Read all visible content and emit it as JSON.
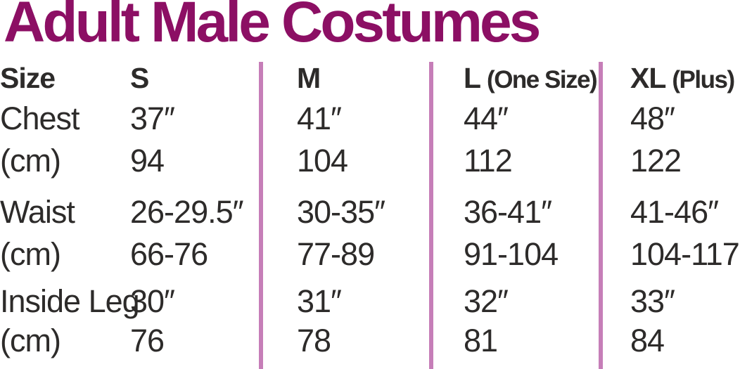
{
  "title": "Adult Male Costumes",
  "colors": {
    "title": "#8c0f64",
    "divider": "#c67eb8",
    "text": "#2d2b2a"
  },
  "table": {
    "header": {
      "row_label": "Size",
      "columns": [
        {
          "label": "S",
          "qualifier": ""
        },
        {
          "label": "M",
          "qualifier": ""
        },
        {
          "label": "L",
          "qualifier": "(One Size)"
        },
        {
          "label": "XL",
          "qualifier": "(Plus)"
        }
      ]
    },
    "rows": [
      {
        "label": "Chest",
        "values": [
          "37″",
          "41″",
          "44″",
          "48″"
        ]
      },
      {
        "label": "(cm)",
        "values": [
          "94",
          "104",
          "112",
          "122"
        ]
      },
      {
        "label": "Waist",
        "values": [
          "26-29.5″",
          "30-35″",
          "36-41″",
          "41-46″"
        ]
      },
      {
        "label": "(cm)",
        "values": [
          "66-76",
          "77-89",
          "91-104",
          "104-117"
        ]
      },
      {
        "label": "Inside Leg",
        "values": [
          "30″",
          "31″",
          "32″",
          "33″"
        ]
      },
      {
        "label": "(cm)",
        "values": [
          "76",
          "78",
          "81",
          "84"
        ]
      }
    ]
  },
  "chart_data": {
    "type": "table",
    "title": "Adult Male Costumes",
    "columns": [
      "Size",
      "S",
      "M",
      "L (One Size)",
      "XL (Plus)"
    ],
    "rows": [
      [
        "Chest",
        "37″",
        "41″",
        "44″",
        "48″"
      ],
      [
        "(cm)",
        "94",
        "104",
        "112",
        "122"
      ],
      [
        "Waist",
        "26-29.5″",
        "30-35″",
        "36-41″",
        "41-46″"
      ],
      [
        "(cm)",
        "66-76",
        "77-89",
        "91-104",
        "104-117"
      ],
      [
        "Inside Leg",
        "30″",
        "31″",
        "32″",
        "33″"
      ],
      [
        "(cm)",
        "76",
        "78",
        "81",
        "84"
      ]
    ]
  }
}
